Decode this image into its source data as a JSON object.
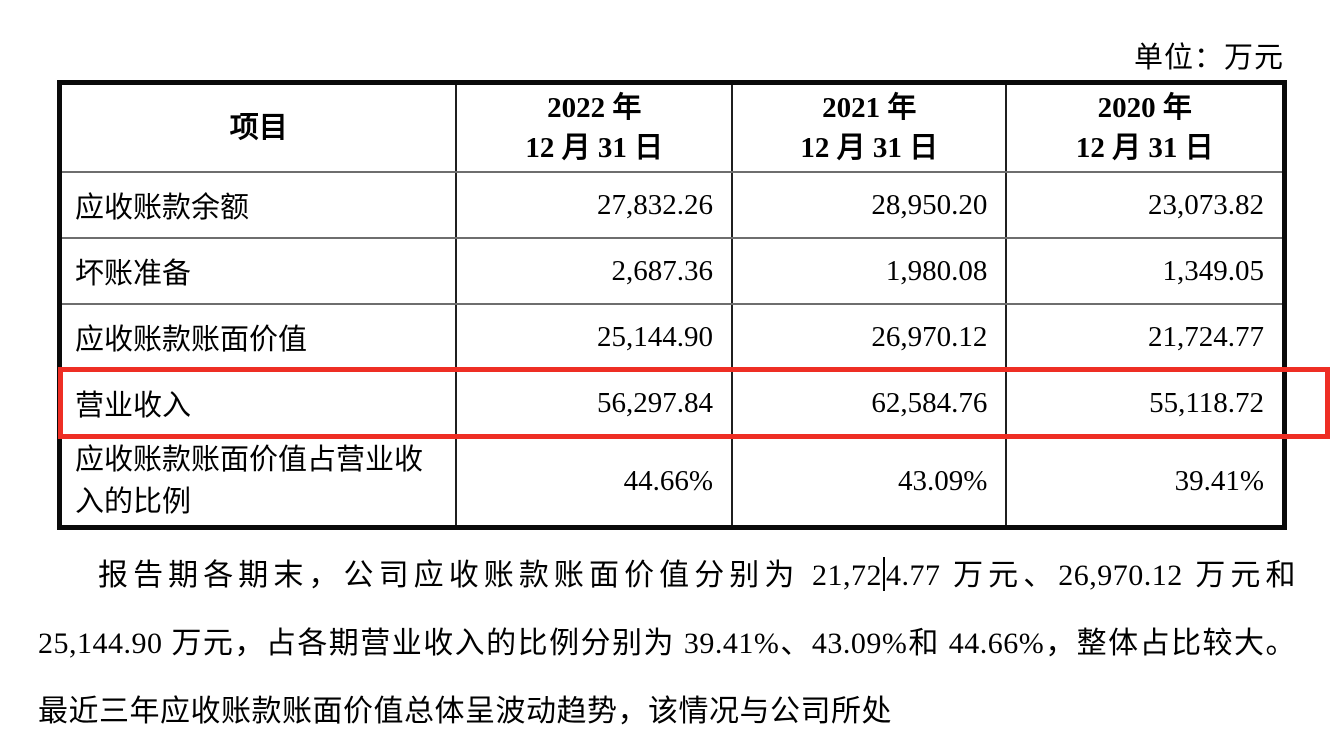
{
  "page": {
    "unit_label": "单位：万元"
  },
  "table": {
    "highlight_color": "#ee2e24",
    "header": [
      {
        "label": "项目"
      },
      {
        "line1": "2022 年",
        "line2": "12 月 31 日"
      },
      {
        "line1": "2021 年",
        "line2": "12 月 31 日"
      },
      {
        "line1": "2020 年",
        "line2": "12 月 31 日"
      }
    ],
    "rows": [
      {
        "label": "应收账款余额",
        "values": [
          "27,832.26",
          "28,950.20",
          "23,073.82"
        ],
        "highlighted": false
      },
      {
        "label": "坏账准备",
        "values": [
          "2,687.36",
          "1,980.08",
          "1,349.05"
        ],
        "highlighted": false
      },
      {
        "label": "应收账款账面价值",
        "values": [
          "25,144.90",
          "26,970.12",
          "21,724.77"
        ],
        "highlighted": false
      },
      {
        "label": "营业收入",
        "values": [
          "56,297.84",
          "62,584.76",
          "55,118.72"
        ],
        "highlighted": true
      },
      {
        "label": "应收账款账面价值占营业收入的比例",
        "values": [
          "44.66%",
          "43.09%",
          "39.41%"
        ],
        "highlighted": false
      }
    ]
  },
  "paragraph": {
    "text_before_cursor": "报告期各期末，公司应收账款账面价值分别为 21,72",
    "text_after_cursor": "4.77 万元、26,970.12 万元和 25,144.90 万元，占各期营业收入的比例分别为 39.41%、43.09%和 44.66%，整体占比较大。最近三年应收账款账面价值总体呈波动趋势，该情况与公司所处"
  }
}
